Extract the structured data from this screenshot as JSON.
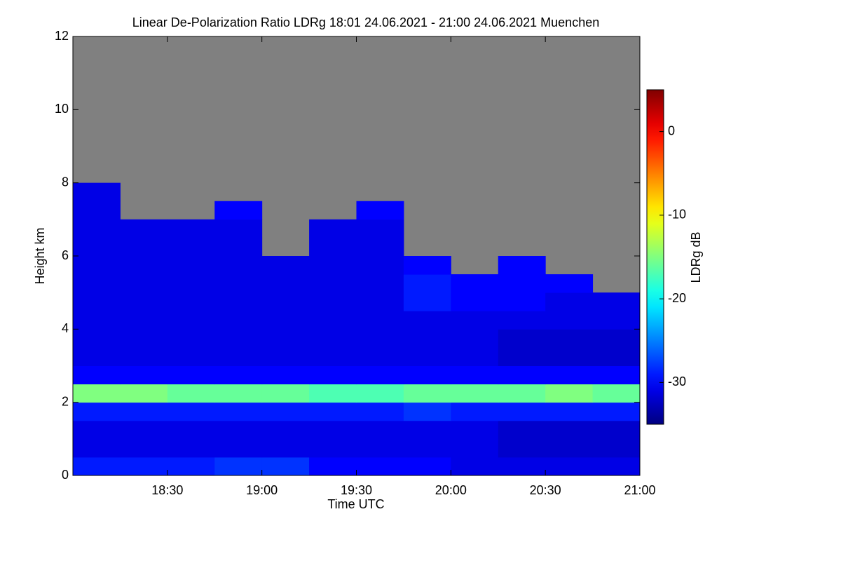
{
  "chart_data": {
    "type": "heatmap",
    "title": "Linear De-Polarization Ratio LDRg   18:01 24.06.2021 - 21:00 24.06.2021 Muenchen",
    "xlabel": "Time UTC",
    "ylabel": "Height km",
    "colorbar_label": "LDRg dB",
    "xlim": [
      18.0,
      21.0
    ],
    "xticks": [
      {
        "value": 18.5,
        "label": "18:30"
      },
      {
        "value": 19.0,
        "label": "19:00"
      },
      {
        "value": 19.5,
        "label": "19:30"
      },
      {
        "value": 20.0,
        "label": "20:00"
      },
      {
        "value": 20.5,
        "label": "20:30"
      },
      {
        "value": 21.0,
        "label": "21:00"
      }
    ],
    "ylim": [
      0,
      12
    ],
    "yticks": [
      0,
      2,
      4,
      6,
      8,
      10,
      12
    ],
    "zlim": [
      -35,
      5
    ],
    "zticks": [
      -30,
      -20,
      -10,
      0
    ],
    "colormap": "jet",
    "missing_color": "#808080",
    "x_bins": [
      18.0,
      18.25,
      18.5,
      18.75,
      19.0,
      19.25,
      19.5,
      19.75,
      20.0,
      20.25,
      20.5,
      20.75,
      21.0
    ],
    "y_bins": [
      0,
      0.5,
      1,
      1.5,
      2,
      2.5,
      3,
      3.5,
      4,
      4.5,
      5,
      5.5,
      6,
      6.5,
      7,
      7.5,
      8,
      8.5,
      9,
      9.5,
      10,
      10.5,
      11,
      11.5,
      12
    ],
    "z": [
      [
        -29,
        -29,
        -29,
        -28,
        -28,
        -30,
        -30,
        -30,
        -31,
        -31,
        -31,
        -31
      ],
      [
        -31,
        -31,
        -31,
        -31,
        -31,
        -31,
        -31,
        -31,
        -31,
        -32,
        -32,
        -32
      ],
      [
        -31,
        -31,
        -31,
        -31,
        -31,
        -31,
        -31,
        -31,
        -31,
        -32,
        -32,
        -32
      ],
      [
        -29,
        -29,
        -29,
        -29,
        -29,
        -29,
        -29,
        -28,
        -29,
        -29,
        -29,
        -29
      ],
      [
        -15,
        -15,
        -16,
        -16,
        -16,
        -17,
        -17,
        -16,
        -16,
        -16,
        -15,
        -16
      ],
      [
        -30,
        -30,
        -30,
        -30,
        -30,
        -30,
        -30,
        -30,
        -30,
        -30,
        -30,
        -30
      ],
      [
        -31,
        -31,
        -31,
        -31,
        -31,
        -31,
        -31,
        -31,
        -31,
        -32,
        -32,
        -32
      ],
      [
        -31,
        -31,
        -31,
        -31,
        -31,
        -31,
        -31,
        -31,
        -31,
        -32,
        -32,
        -32
      ],
      [
        -31,
        -31,
        -31,
        -31,
        -31,
        -31,
        -31,
        -31,
        -31,
        -31,
        -31,
        -31
      ],
      [
        -31,
        -31,
        -31,
        -31,
        -31,
        -31,
        -31,
        -29,
        -30,
        -30,
        -31,
        -31
      ],
      [
        -31,
        -31,
        -31,
        -31,
        -31,
        -31,
        -31,
        -29,
        -30,
        -30,
        -30,
        null
      ],
      [
        -31,
        -31,
        -31,
        -31,
        -31,
        -31,
        -31,
        -30,
        null,
        -30,
        null,
        null
      ],
      [
        -31,
        -31,
        -31,
        -31,
        null,
        -31,
        -31,
        null,
        null,
        null,
        null,
        null
      ],
      [
        -31,
        -31,
        -31,
        -31,
        null,
        -31,
        -31,
        null,
        null,
        null,
        null,
        null
      ],
      [
        -31,
        null,
        null,
        -30,
        null,
        null,
        -30,
        null,
        null,
        null,
        null,
        null
      ],
      [
        -31,
        null,
        null,
        null,
        null,
        null,
        null,
        null,
        null,
        null,
        null,
        null
      ],
      [
        null,
        null,
        null,
        null,
        null,
        null,
        null,
        null,
        null,
        null,
        null,
        null
      ],
      [
        null,
        null,
        null,
        null,
        null,
        null,
        null,
        null,
        null,
        null,
        null,
        null
      ],
      [
        null,
        null,
        null,
        null,
        null,
        null,
        null,
        null,
        null,
        null,
        null,
        null
      ],
      [
        null,
        null,
        null,
        null,
        null,
        null,
        null,
        null,
        null,
        null,
        null,
        null
      ],
      [
        null,
        null,
        null,
        null,
        null,
        null,
        null,
        null,
        null,
        null,
        null,
        null
      ],
      [
        null,
        null,
        null,
        null,
        null,
        null,
        null,
        null,
        null,
        null,
        null,
        null
      ],
      [
        null,
        null,
        null,
        null,
        null,
        null,
        null,
        null,
        null,
        null,
        null,
        null
      ],
      [
        null,
        null,
        null,
        null,
        null,
        null,
        null,
        null,
        null,
        null,
        null,
        null
      ]
    ]
  }
}
